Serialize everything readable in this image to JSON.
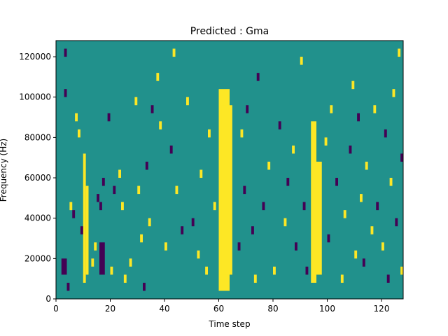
{
  "chart_data": {
    "type": "heatmap",
    "title": "Predicted : Gma",
    "xlabel": "Time step",
    "ylabel": "Frequency (Hz)",
    "xlim": [
      0,
      128
    ],
    "ylim": [
      0,
      128000
    ],
    "x_ticks": [
      0,
      20,
      40,
      60,
      80,
      100,
      120
    ],
    "y_ticks": [
      0,
      20000,
      40000,
      60000,
      80000,
      100000,
      120000
    ],
    "grid": false,
    "legend": "none",
    "colormap": "viridis",
    "values_legend": {
      "-1": "#440154",
      "0": "#21918c",
      "1": "#fde725"
    },
    "background_value": 0,
    "cell_size": {
      "time_steps": 1,
      "hz": 4000
    },
    "bands": [
      {
        "value": 1,
        "t": [
          60,
          64
        ],
        "f": [
          4000,
          104000
        ]
      },
      {
        "value": 1,
        "t": [
          61,
          65
        ],
        "f": [
          12000,
          96000
        ]
      },
      {
        "value": 1,
        "t": [
          94,
          96
        ],
        "f": [
          8000,
          88000
        ]
      },
      {
        "value": 1,
        "t": [
          95,
          98
        ],
        "f": [
          12000,
          68000
        ]
      },
      {
        "value": 1,
        "t": [
          10,
          11
        ],
        "f": [
          8000,
          72000
        ]
      },
      {
        "value": 1,
        "t": [
          11,
          12
        ],
        "f": [
          12000,
          56000
        ]
      },
      {
        "value": -1,
        "t": [
          16,
          18
        ],
        "f": [
          12000,
          28000
        ]
      },
      {
        "value": -1,
        "t": [
          2,
          4
        ],
        "f": [
          12000,
          20000
        ]
      }
    ],
    "cells": [
      [
        3,
        120000,
        -1
      ],
      [
        3,
        100000,
        -1
      ],
      [
        4,
        4000,
        -1
      ],
      [
        5,
        44000,
        1
      ],
      [
        6,
        40000,
        -1
      ],
      [
        7,
        88000,
        1
      ],
      [
        8,
        80000,
        1
      ],
      [
        9,
        32000,
        -1
      ],
      [
        13,
        16000,
        1
      ],
      [
        14,
        24000,
        1
      ],
      [
        15,
        48000,
        -1
      ],
      [
        16,
        44000,
        -1
      ],
      [
        17,
        56000,
        -1
      ],
      [
        19,
        88000,
        -1
      ],
      [
        20,
        12000,
        1
      ],
      [
        21,
        52000,
        -1
      ],
      [
        23,
        60000,
        1
      ],
      [
        24,
        44000,
        1
      ],
      [
        25,
        8000,
        1
      ],
      [
        27,
        16000,
        1
      ],
      [
        29,
        96000,
        1
      ],
      [
        30,
        52000,
        1
      ],
      [
        31,
        28000,
        1
      ],
      [
        32,
        4000,
        -1
      ],
      [
        33,
        64000,
        -1
      ],
      [
        34,
        36000,
        1
      ],
      [
        35,
        92000,
        -1
      ],
      [
        37,
        108000,
        1
      ],
      [
        38,
        84000,
        1
      ],
      [
        40,
        24000,
        1
      ],
      [
        42,
        72000,
        -1
      ],
      [
        43,
        120000,
        1
      ],
      [
        44,
        52000,
        1
      ],
      [
        46,
        32000,
        -1
      ],
      [
        48,
        96000,
        1
      ],
      [
        50,
        36000,
        -1
      ],
      [
        52,
        20000,
        1
      ],
      [
        53,
        60000,
        1
      ],
      [
        55,
        12000,
        1
      ],
      [
        56,
        80000,
        1
      ],
      [
        58,
        44000,
        1
      ],
      [
        67,
        24000,
        -1
      ],
      [
        68,
        80000,
        1
      ],
      [
        69,
        52000,
        -1
      ],
      [
        70,
        92000,
        -1
      ],
      [
        72,
        32000,
        -1
      ],
      [
        73,
        8000,
        1
      ],
      [
        74,
        108000,
        -1
      ],
      [
        76,
        44000,
        -1
      ],
      [
        78,
        64000,
        1
      ],
      [
        80,
        12000,
        1
      ],
      [
        82,
        84000,
        -1
      ],
      [
        84,
        36000,
        1
      ],
      [
        85,
        56000,
        -1
      ],
      [
        87,
        72000,
        1
      ],
      [
        88,
        24000,
        -1
      ],
      [
        90,
        116000,
        1
      ],
      [
        91,
        44000,
        -1
      ],
      [
        92,
        12000,
        -1
      ],
      [
        99,
        76000,
        1
      ],
      [
        100,
        28000,
        -1
      ],
      [
        101,
        92000,
        1
      ],
      [
        103,
        56000,
        -1
      ],
      [
        105,
        8000,
        1
      ],
      [
        106,
        40000,
        1
      ],
      [
        108,
        72000,
        -1
      ],
      [
        109,
        104000,
        1
      ],
      [
        110,
        20000,
        1
      ],
      [
        111,
        88000,
        -1
      ],
      [
        112,
        48000,
        1
      ],
      [
        113,
        16000,
        -1
      ],
      [
        114,
        64000,
        1
      ],
      [
        116,
        32000,
        1
      ],
      [
        117,
        92000,
        1
      ],
      [
        118,
        44000,
        -1
      ],
      [
        120,
        24000,
        1
      ],
      [
        121,
        80000,
        -1
      ],
      [
        122,
        8000,
        -1
      ],
      [
        123,
        56000,
        1
      ],
      [
        124,
        100000,
        1
      ],
      [
        125,
        36000,
        -1
      ],
      [
        126,
        120000,
        1
      ],
      [
        127,
        68000,
        -1
      ],
      [
        127,
        12000,
        1
      ]
    ]
  }
}
